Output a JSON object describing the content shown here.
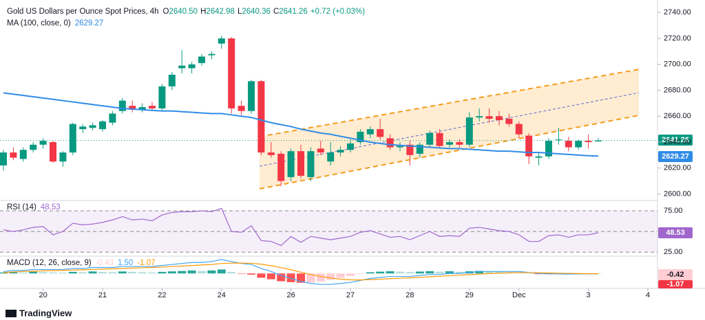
{
  "chart_data": {
    "type": "candlestick",
    "title": "Gold US Dollars per Ounce Spot Prices, 4h",
    "ohlc_header": [
      {
        "key": "O",
        "text": "2640.50"
      },
      {
        "key": "H",
        "text": "2642.98"
      },
      {
        "key": "L",
        "text": "2640.36"
      },
      {
        "key": "C",
        "text": "2641.26"
      }
    ],
    "change": "+0.72 (+0.03%)",
    "last_price_label": "2641.26",
    "brand": "TradingView",
    "up_color": "#089981",
    "down_color": "#f23645",
    "ylim": [
      2596,
      2747
    ],
    "yticks": [
      {
        "value": 2600,
        "label": "2600.00"
      },
      {
        "value": 2620,
        "label": "2620.00"
      },
      {
        "value": 2640,
        "label": "2640.00"
      },
      {
        "value": 2660,
        "label": "2660.00"
      },
      {
        "value": 2680,
        "label": "2680.00"
      },
      {
        "value": 2700,
        "label": "2700.00"
      },
      {
        "value": 2720,
        "label": "2720.00"
      },
      {
        "value": 2740,
        "label": "2740.00"
      }
    ],
    "xticks": [
      {
        "value": 4,
        "label": "20"
      },
      {
        "value": 10,
        "label": "21"
      },
      {
        "value": 16,
        "label": "22"
      },
      {
        "value": 22,
        "label": "24"
      },
      {
        "value": 29,
        "label": "26"
      },
      {
        "value": 35,
        "label": "27"
      },
      {
        "value": 41,
        "label": "28"
      },
      {
        "value": 47,
        "label": "29"
      },
      {
        "value": 52,
        "label": "Dec"
      },
      {
        "value": 59,
        "label": "3"
      },
      {
        "value": 65,
        "label": "4"
      }
    ],
    "open": [
      2622,
      2632,
      2627,
      2634,
      2638,
      2640,
      2625,
      2632,
      2650,
      2651,
      2650,
      2655,
      2664,
      2668,
      2665,
      2668,
      2666,
      2683,
      2697,
      2697,
      2701,
      2707,
      2716,
      2720,
      2668,
      2664,
      2687,
      2632,
      2631,
      2613,
      2633,
      2613,
      2635,
      2625,
      2632,
      2634,
      2640,
      2646,
      2650,
      2643,
      2636,
      2638,
      2631,
      2638,
      2647,
      2638,
      2640,
      2638,
      2659,
      2660,
      2660,
      2658,
      2654,
      2645,
      2628,
      2629,
      2642,
      2641,
      2636,
      2641,
      2640.5
    ],
    "high": [
      2634,
      2636,
      2636,
      2640,
      2643,
      2641,
      2633,
      2655,
      2654,
      2655,
      2657,
      2664,
      2674,
      2672,
      2670,
      2671,
      2685,
      2694,
      2711,
      2702,
      2708,
      2710,
      2722,
      2721,
      2672,
      2688,
      2688,
      2640,
      2633,
      2635,
      2638,
      2636,
      2641,
      2640,
      2637,
      2642,
      2650,
      2652,
      2658,
      2646,
      2640,
      2641,
      2640,
      2649,
      2650,
      2642,
      2642,
      2663,
      2666,
      2666,
      2664,
      2662,
      2656,
      2647,
      2632,
      2643,
      2651,
      2644,
      2642,
      2646,
      2642.98
    ],
    "low": [
      2618,
      2626,
      2625,
      2632,
      2635,
      2624,
      2621,
      2630,
      2647,
      2649,
      2648,
      2653,
      2662,
      2663,
      2663,
      2664,
      2664,
      2680,
      2693,
      2693,
      2699,
      2704,
      2712,
      2662,
      2661,
      2662,
      2630,
      2628,
      2606,
      2610,
      2612,
      2610,
      2630,
      2622,
      2629,
      2632,
      2638,
      2643,
      2642,
      2634,
      2633,
      2622,
      2628,
      2636,
      2635,
      2636,
      2636,
      2636,
      2656,
      2655,
      2653,
      2652,
      2643,
      2623,
      2622,
      2627,
      2638,
      2633,
      2634,
      2635,
      2640.36
    ],
    "close": [
      2632,
      2628,
      2634,
      2638,
      2641,
      2625,
      2632,
      2654,
      2652,
      2653,
      2656,
      2662,
      2672,
      2665,
      2667,
      2666,
      2683,
      2692,
      2699,
      2700,
      2706,
      2708,
      2720,
      2666,
      2664,
      2687,
      2632,
      2630,
      2610,
      2633,
      2614,
      2633,
      2632,
      2632,
      2634,
      2639,
      2648,
      2650,
      2644,
      2636,
      2637,
      2630,
      2638,
      2647,
      2637,
      2640,
      2638,
      2659,
      2660,
      2658,
      2657,
      2654,
      2646,
      2629,
      2629,
      2641,
      2642,
      2636,
      2641,
      2640,
      2641.26
    ],
    "ma": {
      "name": "MA (100, close, 0)",
      "value_label": "2629.27",
      "color": "#2f8be6",
      "values": [
        2678,
        2677,
        2676,
        2675,
        2674,
        2673,
        2672,
        2671,
        2670,
        2669,
        2668,
        2667,
        2666,
        2665.5,
        2665,
        2664.5,
        2664,
        2664,
        2663.5,
        2663,
        2662.5,
        2662,
        2662,
        2661,
        2660,
        2659,
        2657,
        2655,
        2653.5,
        2652,
        2650,
        2648.5,
        2647,
        2646,
        2644.5,
        2643,
        2641.5,
        2640,
        2639,
        2638,
        2637.5,
        2637,
        2636.5,
        2636,
        2635.5,
        2635,
        2635,
        2634.5,
        2634,
        2633.5,
        2633,
        2633,
        2632.5,
        2632,
        2632,
        2631.5,
        2631,
        2630.5,
        2630,
        2629.5,
        2629.27
      ]
    },
    "rsi": {
      "name": "RSI (14)",
      "value_label": "48.53",
      "color": "#a066cc",
      "ylim": [
        21,
        85
      ],
      "yticks": [
        {
          "value": 75,
          "label": "75.00"
        },
        {
          "value": 25,
          "label": "25.00"
        }
      ],
      "values": [
        52,
        50,
        52,
        55,
        56,
        46,
        50,
        60,
        58,
        59,
        61,
        64,
        68,
        64,
        65,
        63,
        70,
        73,
        74,
        74,
        75,
        74,
        78,
        50,
        49,
        57,
        39,
        38,
        33,
        44,
        37,
        44,
        42,
        40,
        42,
        44,
        49,
        51,
        47,
        43,
        44,
        40,
        45,
        50,
        44,
        45,
        44,
        54,
        55,
        53,
        51,
        50,
        46,
        38,
        38,
        45,
        46,
        43,
        46,
        46,
        48.53
      ]
    },
    "macd": {
      "name": "MACD (12, 26, close, 9)",
      "header_values": [
        "-0.43",
        "1.50",
        "-1.07"
      ],
      "axis_labels": [
        "-0.42",
        "-1.07"
      ],
      "ylim": [
        -15,
        16
      ],
      "macd_color": "#42a5f5",
      "signal_color": "#ff9800",
      "hist_colors": [
        "#26a69a",
        "#b2dfdb",
        "#ff5252",
        "#ffcdd2"
      ],
      "macd": [
        2,
        3,
        3,
        4,
        4,
        4,
        4,
        5,
        5,
        6,
        6,
        6,
        7,
        7,
        7,
        7,
        8,
        9,
        10,
        11,
        11,
        12,
        14,
        12,
        10,
        9,
        5,
        2,
        -2,
        -5,
        -8,
        -10,
        -11,
        -11,
        -10,
        -9,
        -7,
        -5,
        -4,
        -3,
        -3,
        -3,
        -2,
        -1,
        -1,
        0,
        0,
        1,
        2,
        2,
        2,
        2,
        2,
        1,
        0,
        -0.3,
        -0.5,
        -0.6,
        -0.5,
        -0.4,
        -0.4
      ],
      "signal": [
        1,
        1.5,
        2,
        2.3,
        2.6,
        2.9,
        3.1,
        3.4,
        3.7,
        4,
        4.4,
        4.7,
        5,
        5.4,
        5.7,
        6,
        6.4,
        6.9,
        7.5,
        8,
        8.5,
        9,
        10,
        10.4,
        10.4,
        10.2,
        9.3,
        7.8,
        5.8,
        3.7,
        1.3,
        -1,
        -3,
        -4.6,
        -5.7,
        -6.4,
        -6.5,
        -6.2,
        -5.8,
        -5.2,
        -4.8,
        -4.4,
        -3.9,
        -3.3,
        -2.8,
        -2.2,
        -1.7,
        -1.2,
        -0.6,
        -0.1,
        0.3,
        0.6,
        0.9,
        0.9,
        0.7,
        0.5,
        0.3,
        0.1,
        -0.1,
        -0.2,
        -0.3
      ],
      "hist": [
        1,
        1.5,
        1,
        1.7,
        1.4,
        1.1,
        0.9,
        1.6,
        1.3,
        2,
        1.6,
        1.3,
        2,
        1.6,
        1.3,
        1,
        1.6,
        2.1,
        2.5,
        3,
        2.5,
        3,
        4,
        1.6,
        -0.4,
        -1.2,
        -4.3,
        -5.8,
        -7.8,
        -8.7,
        -9.3,
        -9,
        -8,
        -6.4,
        -4.3,
        -2.6,
        -0.5,
        1.2,
        1.8,
        2.2,
        1.8,
        1.4,
        1.9,
        2.3,
        1.8,
        2.2,
        1.7,
        2.2,
        2.6,
        2.1,
        1.7,
        1.4,
        1.1,
        0.1,
        -0.7,
        -0.8,
        -0.8,
        -0.7,
        -0.4,
        -0.2,
        -0.1
      ]
    }
  }
}
